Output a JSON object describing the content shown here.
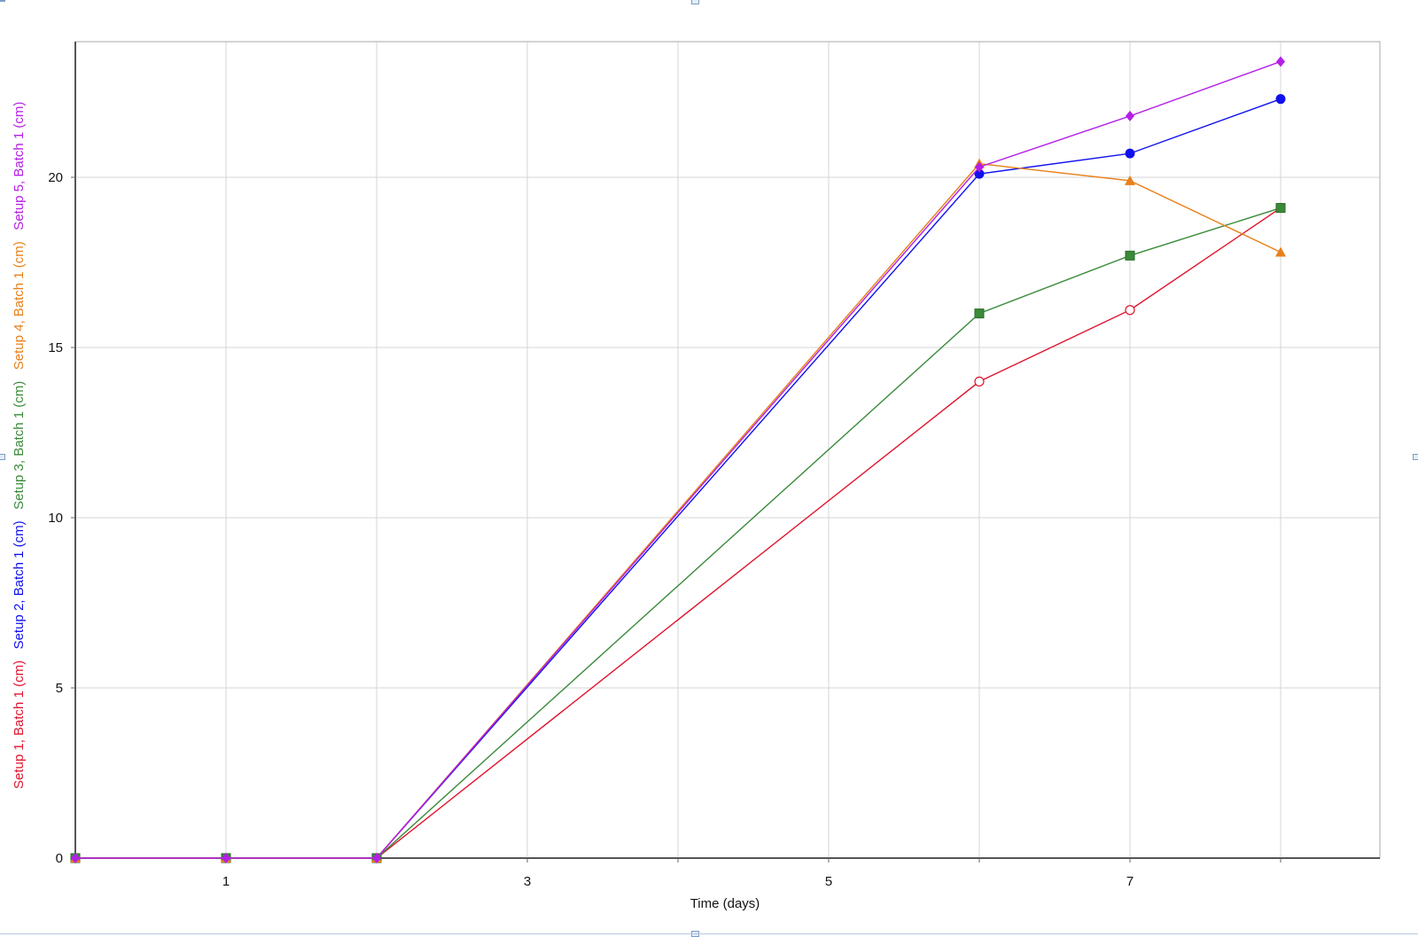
{
  "chart_data": {
    "type": "line",
    "title": "",
    "xlabel": "Time (days)",
    "xlim": [
      0,
      8.6
    ],
    "ylim": [
      0,
      24
    ],
    "x_ticks": [
      1,
      3,
      5,
      7
    ],
    "y_ticks": [
      0,
      5,
      10,
      15,
      20
    ],
    "grid": true,
    "series": [
      {
        "name": "Setup 1, Batch 1 (cm)",
        "color": "#e0142e",
        "marker": "open-circle",
        "x": [
          0,
          1,
          2,
          6,
          7,
          8
        ],
        "y": [
          0,
          0,
          0,
          14.0,
          16.1,
          19.1
        ]
      },
      {
        "name": "Setup 2, Batch 1 (cm)",
        "color": "#1010ee",
        "marker": "circle",
        "x": [
          0,
          1,
          2,
          6,
          7,
          8
        ],
        "y": [
          0,
          0,
          0,
          20.1,
          20.7,
          22.3
        ]
      },
      {
        "name": "Setup 3, Batch 1 (cm)",
        "color": "#3a8a3a",
        "marker": "square",
        "x": [
          0,
          1,
          2,
          6,
          7,
          8
        ],
        "y": [
          0,
          0,
          0,
          16.0,
          17.7,
          19.1
        ]
      },
      {
        "name": "Setup 4, Batch 1 (cm)",
        "color": "#e8801a",
        "marker": "triangle",
        "x": [
          0,
          1,
          2,
          6,
          7,
          8
        ],
        "y": [
          0,
          0,
          0,
          20.4,
          19.9,
          17.8
        ]
      },
      {
        "name": "Setup 5, Batch 1 (cm)",
        "color": "#b41fe6",
        "marker": "diamond",
        "x": [
          0,
          1,
          2,
          6,
          7,
          8
        ],
        "y": [
          0,
          0,
          0,
          20.3,
          21.8,
          23.4
        ]
      }
    ]
  }
}
